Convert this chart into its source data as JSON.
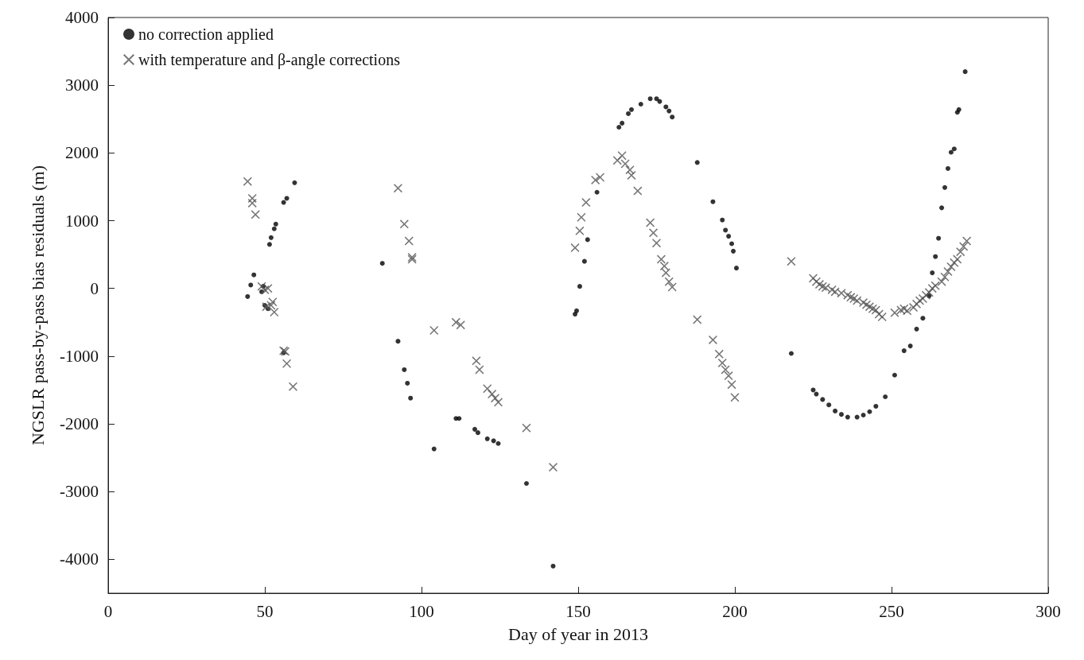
{
  "chart_data": {
    "type": "scatter",
    "xlabel": "Day of year in 2013",
    "ylabel": "NGSLR pass-by-pass bias residuals (m)",
    "xlim": [
      0,
      300
    ],
    "xticks": [
      0,
      50,
      100,
      150,
      200,
      250,
      300
    ],
    "ylim": [
      -4500,
      4000
    ],
    "yticks": [
      -4000,
      -3000,
      -2000,
      -1000,
      0,
      1000,
      2000,
      3000,
      4000
    ],
    "grid": false,
    "legend": "top left",
    "series": [
      {
        "name": "no correction applied",
        "color": "#000000",
        "marker": "circle",
        "x": [
          44.5,
          45.5,
          46.5,
          49,
          49.5,
          50,
          51,
          51.5,
          52,
          53,
          53.5,
          56,
          57,
          59.5,
          56,
          87.5,
          92.5,
          94.5,
          95.5,
          96.5,
          104,
          111,
          112,
          117,
          118,
          121,
          123,
          124.5,
          133.5,
          142,
          149,
          149.5,
          150.5,
          152,
          153,
          156,
          163,
          164,
          166,
          167,
          170,
          173,
          175,
          176,
          178,
          179,
          180,
          188,
          193,
          196,
          197,
          198,
          199,
          199.5,
          200.5,
          218,
          225,
          226,
          228,
          230,
          232,
          234,
          236,
          239,
          241,
          243,
          245,
          248,
          251,
          254,
          256,
          258,
          260,
          262,
          263,
          264,
          265,
          266,
          267,
          268,
          269,
          270,
          271,
          271.5,
          273.5
        ],
        "values": [
          -120,
          50,
          200,
          -50,
          30,
          -250,
          -300,
          650,
          750,
          880,
          950,
          1270,
          1330,
          1560,
          -950,
          370,
          -780,
          -1200,
          -1400,
          -1620,
          -2370,
          -1920,
          -1920,
          -2080,
          -2130,
          -2220,
          -2250,
          -2290,
          -2880,
          -4100,
          -380,
          -330,
          30,
          400,
          720,
          1420,
          2380,
          2440,
          2580,
          2640,
          2720,
          2800,
          2800,
          2760,
          2680,
          2620,
          2530,
          1860,
          1280,
          1010,
          860,
          770,
          660,
          550,
          300,
          -960,
          -1500,
          -1560,
          -1640,
          -1720,
          -1810,
          -1860,
          -1900,
          -1900,
          -1870,
          -1820,
          -1740,
          -1600,
          -1280,
          -920,
          -850,
          -600,
          -440,
          -110,
          230,
          470,
          740,
          1190,
          1490,
          1770,
          2010,
          2060,
          2600,
          2640,
          3200
        ]
      },
      {
        "name": "with temperature and β-angle corrections",
        "color": "#555555",
        "marker": "cross",
        "x": [
          44.5,
          46,
          46,
          47,
          49,
          50,
          50.5,
          51,
          52,
          52.5,
          53,
          56,
          56.5,
          57,
          59,
          92.5,
          94.5,
          96,
          97,
          97,
          104,
          111,
          112.5,
          117.5,
          118.5,
          121,
          122.5,
          123.5,
          124.5,
          133.5,
          142,
          149,
          150.5,
          151,
          152.5,
          155.5,
          157,
          162.5,
          164,
          165,
          166.5,
          167,
          169,
          173,
          174,
          175,
          176.5,
          177.5,
          178,
          179,
          180,
          188,
          193,
          195,
          196,
          197,
          198,
          199,
          200,
          218,
          225,
          226,
          227,
          228,
          229,
          231,
          232,
          234,
          236,
          237,
          238,
          239,
          241,
          242,
          243,
          244,
          245,
          246,
          247,
          251,
          253,
          254,
          255,
          257,
          258,
          259,
          260,
          261,
          262,
          263,
          264,
          266,
          267,
          268,
          269,
          270,
          271,
          272,
          273,
          274
        ],
        "values": [
          1580,
          1330,
          1260,
          1090,
          30,
          -20,
          -270,
          0,
          -250,
          -200,
          -350,
          -920,
          -930,
          -1110,
          -1450,
          1480,
          950,
          700,
          460,
          430,
          -620,
          -500,
          -540,
          -1070,
          -1200,
          -1480,
          -1560,
          -1620,
          -1680,
          -2060,
          -2640,
          600,
          850,
          1050,
          1270,
          1600,
          1640,
          1890,
          1960,
          1840,
          1750,
          1670,
          1440,
          970,
          820,
          670,
          430,
          330,
          230,
          100,
          20,
          -460,
          -760,
          -970,
          -1100,
          -1200,
          -1290,
          -1420,
          -1610,
          400,
          150,
          100,
          60,
          30,
          10,
          -20,
          -50,
          -70,
          -100,
          -130,
          -150,
          -180,
          -210,
          -240,
          -270,
          -300,
          -320,
          -380,
          -420,
          -360,
          -320,
          -300,
          -330,
          -280,
          -230,
          -180,
          -150,
          -100,
          -60,
          0,
          40,
          100,
          170,
          250,
          320,
          380,
          430,
          540,
          620,
          700
        ]
      }
    ]
  }
}
